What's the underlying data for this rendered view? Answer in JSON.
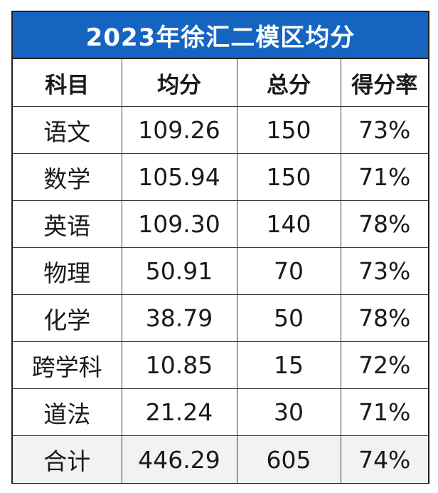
{
  "title": "2023年徐汇二模区均分",
  "headers": [
    "科目",
    "均分",
    "总分",
    "得分率"
  ],
  "rows": [
    [
      "语文",
      "109.26",
      "150",
      "73%"
    ],
    [
      "数学",
      "105.94",
      "150",
      "71%"
    ],
    [
      "英语",
      "109.30",
      "140",
      "78%"
    ],
    [
      "物理",
      "50.91",
      "70",
      "73%"
    ],
    [
      "化学",
      "38.79",
      "50",
      "78%"
    ],
    [
      "跨学科",
      "10.85",
      "15",
      "72%"
    ],
    [
      "道法",
      "21.24",
      "30",
      "71%"
    ]
  ],
  "total": [
    "合计",
    "446.29",
    "605",
    "74%"
  ],
  "colors": {
    "title_bg": "#1565c0",
    "title_fg": "#ffffff",
    "total_row_bg": "#f2f2f2",
    "border": "#3a3a3a"
  }
}
